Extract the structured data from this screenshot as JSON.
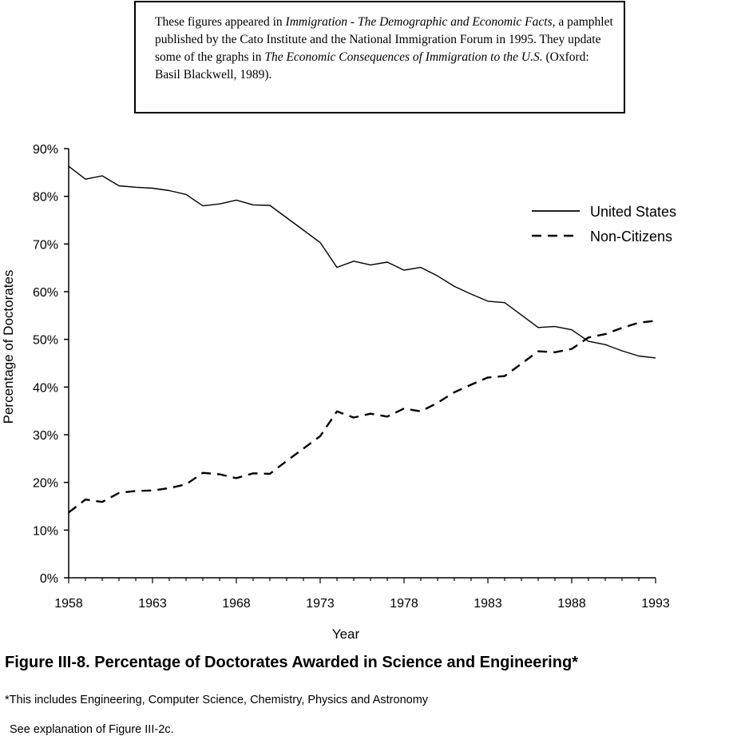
{
  "note": {
    "t1": "These figures appeared in ",
    "t2": "Immigration - The Demographic and Economic Facts",
    "t3": ", a pamphlet published by the Cato Institute and the National Immigration Forum in 1995. They update some of the graphs in ",
    "t4": "The Economic Consequences of Immigration to the U.S.",
    "t5": " (Oxford: Basil Blackwell, 1989)."
  },
  "caption": "Figure III-8.  Percentage of Doctorates Awarded in Science and Engineering*",
  "footnote": "*This includes Engineering, Computer Science, Chemistry, Physics and Astronomy",
  "see_also": "See explanation of Figure III-2c.",
  "chart_data": {
    "type": "line",
    "title": "",
    "xlabel": "Year",
    "ylabel": "Percentage of Doctorates",
    "xlim": [
      1958,
      1993
    ],
    "ylim": [
      0,
      90
    ],
    "x_ticks": [
      1958,
      1963,
      1968,
      1973,
      1978,
      1983,
      1988,
      1993
    ],
    "y_ticks": [
      0,
      10,
      20,
      30,
      40,
      50,
      60,
      70,
      80,
      90
    ],
    "y_tick_labels": [
      "0%",
      "10%",
      "20%",
      "30%",
      "40%",
      "50%",
      "60%",
      "70%",
      "80%",
      "90%"
    ],
    "x": [
      1958,
      1959,
      1960,
      1961,
      1962,
      1963,
      1964,
      1965,
      1966,
      1967,
      1968,
      1969,
      1970,
      1971,
      1972,
      1973,
      1974,
      1975,
      1976,
      1977,
      1978,
      1979,
      1980,
      1981,
      1982,
      1983,
      1984,
      1985,
      1986,
      1987,
      1988,
      1989,
      1990,
      1991,
      1992,
      1993
    ],
    "series": [
      {
        "name": "United States",
        "style": "solid",
        "values": [
          86.3,
          83.6,
          84.3,
          82.2,
          81.9,
          81.7,
          81.2,
          80.4,
          78.0,
          78.4,
          79.2,
          78.2,
          78.1,
          75.5,
          72.9,
          70.3,
          65.1,
          66.4,
          65.6,
          66.2,
          64.5,
          65.1,
          63.3,
          61.1,
          59.5,
          58.0,
          57.7,
          55.1,
          52.5,
          52.7,
          52.0,
          49.6,
          48.9,
          47.6,
          46.5,
          46.1
        ]
      },
      {
        "name": "Non-Citizens",
        "style": "dashed",
        "values": [
          13.7,
          16.4,
          15.9,
          17.8,
          18.2,
          18.3,
          18.8,
          19.6,
          22.0,
          21.7,
          20.9,
          21.9,
          21.8,
          24.5,
          27.1,
          29.7,
          34.9,
          33.6,
          34.4,
          33.8,
          35.5,
          34.9,
          36.7,
          38.9,
          40.5,
          42.0,
          42.3,
          44.9,
          47.5,
          47.3,
          48.0,
          50.4,
          51.1,
          52.4,
          53.5,
          53.9
        ]
      }
    ],
    "legend_position": "right",
    "grid": false,
    "colors": {
      "line": "#000000"
    }
  }
}
